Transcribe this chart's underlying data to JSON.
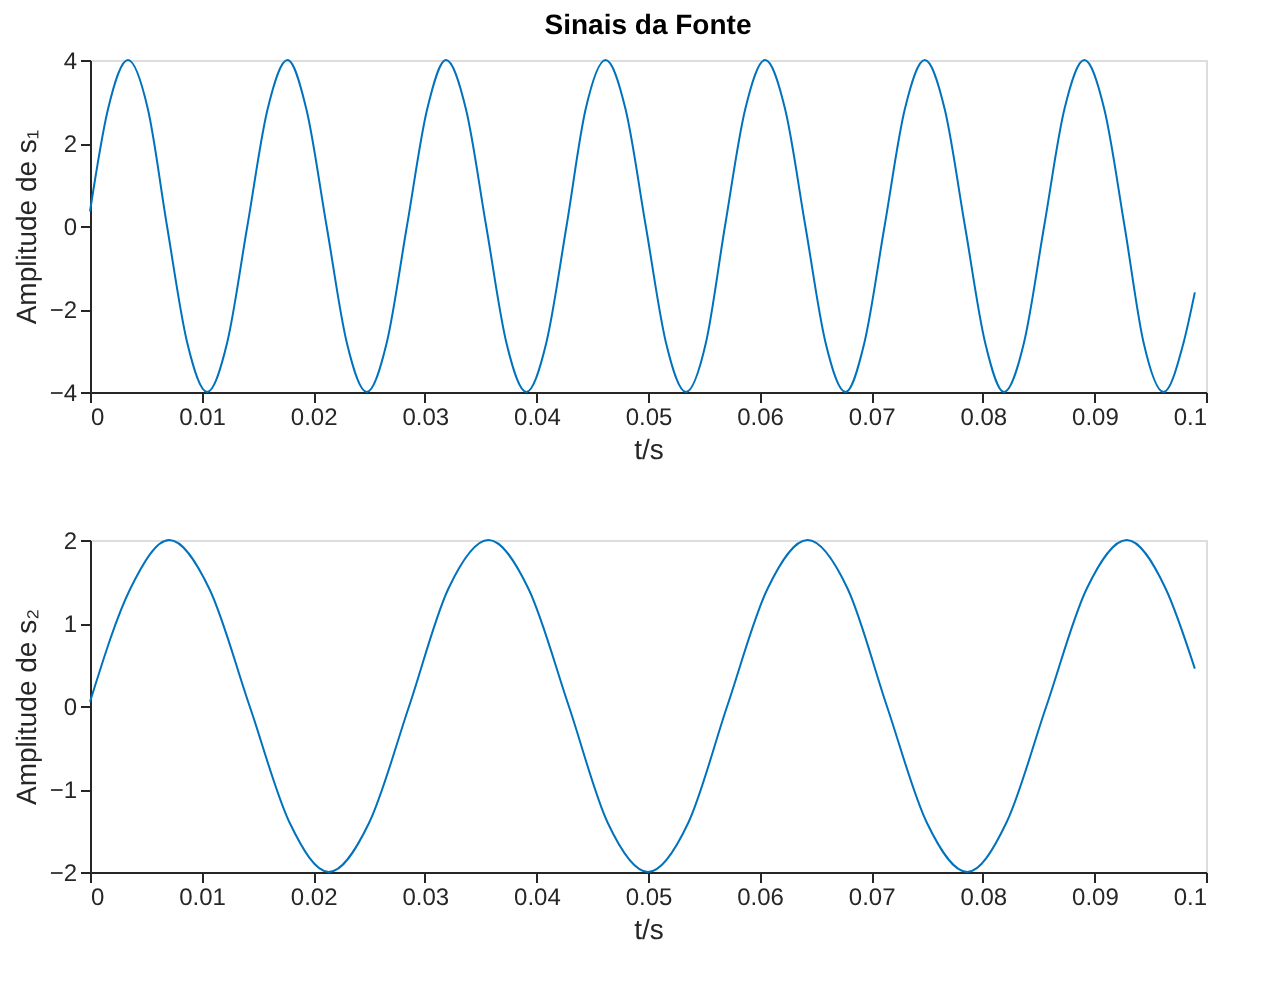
{
  "chart_data": [
    {
      "type": "line",
      "title": "Sinais da Fonte",
      "xlabel": "t/s",
      "ylabel": "Amplitude de s₁",
      "xlim": [
        0,
        0.1
      ],
      "xticks": [
        0,
        0.01,
        0.02,
        0.03,
        0.04,
        0.05,
        0.06,
        0.07,
        0.08,
        0.09,
        0.1
      ],
      "ylim": [
        -4,
        4
      ],
      "yticks": [
        -4,
        -2,
        0,
        2,
        4
      ],
      "grid": false,
      "legend": false,
      "marker": "none",
      "line_style": "solid",
      "series": [
        {
          "color": "#0072bd",
          "x": [
            0,
            0.0016,
            0.0034,
            0.0052,
            0.0069,
            0.0087,
            0.0105,
            0.0123,
            0.0141,
            0.0159,
            0.0177,
            0.0194,
            0.0212,
            0.023,
            0.0248,
            0.0266,
            0.0284,
            0.0302,
            0.0319,
            0.0337,
            0.0355,
            0.0373,
            0.0391,
            0.0409,
            0.0427,
            0.0444,
            0.0462,
            0.048,
            0.0498,
            0.0516,
            0.0534,
            0.0552,
            0.0569,
            0.0587,
            0.0605,
            0.0623,
            0.0641,
            0.0659,
            0.0677,
            0.0694,
            0.0712,
            0.073,
            0.0748,
            0.0766,
            0.0784,
            0.0802,
            0.0819,
            0.0837,
            0.0855,
            0.0873,
            0.0891,
            0.0909,
            0.0927,
            0.0944,
            0.0962,
            0.098,
            0.099
          ],
          "values": [
            0.35,
            2.8,
            4,
            2.8,
            0,
            -2.8,
            -4,
            -2.8,
            0,
            2.8,
            4,
            2.8,
            0,
            -2.8,
            -4,
            -2.8,
            0,
            2.8,
            4,
            2.8,
            0,
            -2.8,
            -4,
            -2.8,
            0,
            2.8,
            4,
            2.8,
            0,
            -2.8,
            -4,
            -2.8,
            0,
            2.8,
            4,
            2.8,
            0,
            -2.8,
            -4,
            -2.8,
            0,
            2.8,
            4,
            2.8,
            0,
            -2.8,
            -4,
            -2.8,
            0,
            2.8,
            4,
            2.8,
            0,
            -2.8,
            -4,
            -2.8,
            -1.6
          ]
        }
      ]
    },
    {
      "type": "line",
      "xlabel": "t/s",
      "ylabel": "Amplitude de s₂",
      "xlim": [
        0,
        0.1
      ],
      "xticks": [
        0,
        0.01,
        0.02,
        0.03,
        0.04,
        0.05,
        0.06,
        0.07,
        0.08,
        0.09,
        0.1
      ],
      "ylim": [
        -2,
        2
      ],
      "yticks": [
        -2,
        -1,
        0,
        1,
        2
      ],
      "grid": false,
      "legend": false,
      "marker": "none",
      "line_style": "solid",
      "series": [
        {
          "color": "#0072bd",
          "x": [
            0,
            0.0036,
            0.0071,
            0.0107,
            0.0143,
            0.0179,
            0.0214,
            0.025,
            0.0286,
            0.0321,
            0.0357,
            0.0393,
            0.0429,
            0.0464,
            0.05,
            0.0536,
            0.0571,
            0.0607,
            0.0643,
            0.0679,
            0.0714,
            0.075,
            0.0786,
            0.0821,
            0.0857,
            0.0893,
            0.0929,
            0.0964,
            0.099
          ],
          "values": [
            0.05,
            1.41,
            2,
            1.41,
            0,
            -1.41,
            -2,
            -1.41,
            0,
            1.41,
            2,
            1.41,
            0,
            -1.41,
            -2,
            -1.41,
            0,
            1.41,
            2,
            1.41,
            0,
            -1.41,
            -2,
            -1.41,
            0,
            1.41,
            2,
            1.41,
            0.45
          ]
        }
      ]
    }
  ]
}
